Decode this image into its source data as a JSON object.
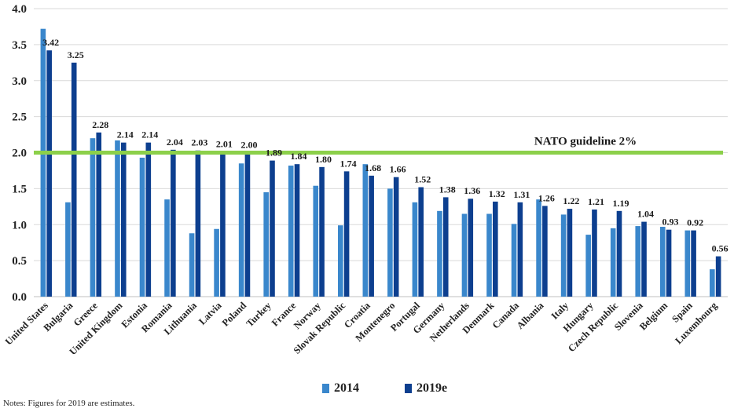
{
  "chart_data": {
    "type": "bar",
    "categories": [
      "United States",
      "Bulgaria",
      "Greece",
      "United Kingdom",
      "Estonia",
      "Romania",
      "Lithuania",
      "Latvia",
      "Poland",
      "Turkey",
      "France",
      "Norway",
      "Slovak Republic",
      "Croatia",
      "Montenegro",
      "Portugal",
      "Germany",
      "Netherlands",
      "Denmark",
      "Canada",
      "Albania",
      "Italy",
      "Hungary",
      "Czech Republic",
      "Slovenia",
      "Belgium",
      "Spain",
      "Luxembourg"
    ],
    "series": [
      {
        "name": "2014",
        "color": "#3a87cc",
        "values": [
          3.72,
          1.31,
          2.2,
          2.17,
          1.93,
          1.35,
          0.88,
          0.94,
          1.85,
          1.45,
          1.82,
          1.54,
          0.99,
          1.84,
          1.5,
          1.31,
          1.19,
          1.15,
          1.15,
          1.01,
          1.35,
          1.14,
          0.86,
          0.95,
          0.98,
          0.97,
          0.92,
          0.38
        ]
      },
      {
        "name": "2019e",
        "color": "#0d3f8f",
        "values": [
          3.42,
          3.25,
          2.28,
          2.14,
          2.14,
          2.04,
          2.03,
          2.01,
          2.0,
          1.89,
          1.84,
          1.8,
          1.74,
          1.68,
          1.66,
          1.52,
          1.38,
          1.36,
          1.32,
          1.31,
          1.26,
          1.22,
          1.21,
          1.19,
          1.04,
          0.93,
          0.92,
          0.56
        ]
      }
    ],
    "data_labels": [
      "3.42",
      "3.25",
      "2.28",
      "2.14",
      "2.14",
      "2.04",
      "2.03",
      "2.01",
      "2.00",
      "1.89",
      "1.84",
      "1.80",
      "1.74",
      "1.68",
      "1.66",
      "1.52",
      "1.38",
      "1.36",
      "1.32",
      "1.31",
      "1.26",
      "1.22",
      "1.21",
      "1.19",
      "1.04",
      "0.93",
      "0.92",
      "0.56"
    ],
    "yticks": [
      "0.0",
      "0.5",
      "1.0",
      "1.5",
      "2.0",
      "2.5",
      "3.0",
      "3.5",
      "4.0"
    ],
    "ylim": [
      0,
      4
    ],
    "reference_line": {
      "value": 2.0,
      "label": "NATO guideline 2%",
      "color": "#8cd04a"
    },
    "gridlines": true,
    "legend_position": "bottom"
  },
  "legend": [
    {
      "label": "2014",
      "color": "#3a87cc"
    },
    {
      "label": "2019e",
      "color": "#0d3f8f"
    }
  ],
  "note": "Notes: Figures for 2019 are estimates."
}
